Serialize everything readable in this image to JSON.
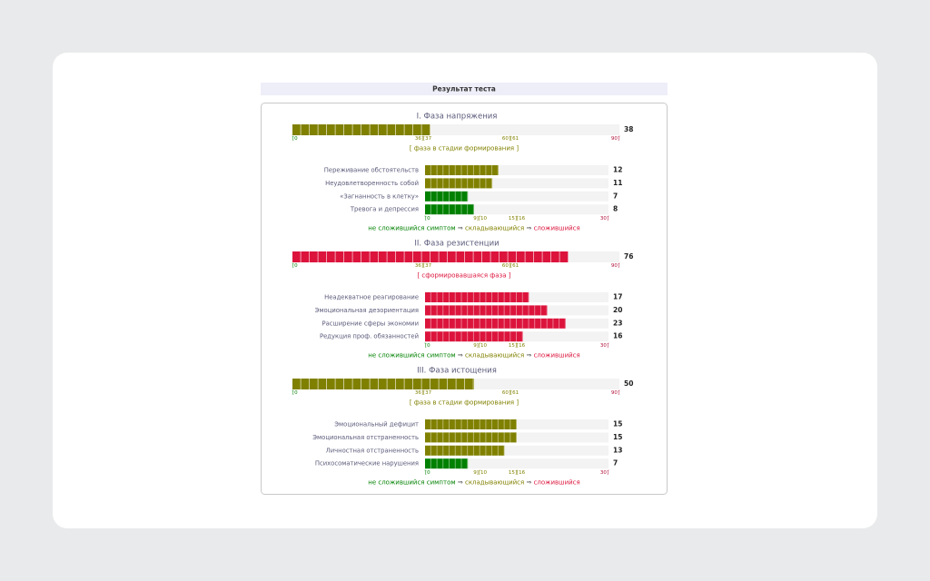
{
  "header": {
    "title": "Результат теста"
  },
  "phase_scale": {
    "ticks": [
      {
        "value": 0,
        "label": "[0",
        "color": "#008000"
      },
      {
        "value": 36,
        "label": "36][37",
        "color": "#808000"
      },
      {
        "value": 60,
        "label": "60][61",
        "color": "#808000"
      },
      {
        "value": 90,
        "label": "90]",
        "color": "#b0103a"
      }
    ]
  },
  "symptom_scale": {
    "ticks": [
      {
        "value": 0,
        "label": "[0",
        "color": "#008000"
      },
      {
        "value": 9,
        "label": "9][10",
        "color": "#808000"
      },
      {
        "value": 15,
        "label": "15][16",
        "color": "#808000"
      },
      {
        "value": 30,
        "label": "30]",
        "color": "#b0103a"
      }
    ]
  },
  "legend": {
    "separator": "⇒",
    "items": [
      {
        "text": "не сложившийся симптом",
        "color": "#008000"
      },
      {
        "text": "складывающийся",
        "color": "#808000"
      },
      {
        "text": "сложившийся",
        "color": "#dc143c"
      }
    ]
  },
  "phases": [
    {
      "title": "I. Фаза напряжения",
      "score": 38,
      "color": "#808000",
      "status": "[ фаза в стадии формирования ]",
      "status_color": "#808000",
      "symptoms": [
        {
          "name": "Переживание обстоятельств",
          "score": 12,
          "color": "#808000"
        },
        {
          "name": "Неудовлетворенность собой",
          "score": 11,
          "color": "#808000"
        },
        {
          "name": "«Загнанность в клетку»",
          "score": 7,
          "color": "#008000"
        },
        {
          "name": "Тревога и депрессия",
          "score": 8,
          "color": "#008000"
        }
      ]
    },
    {
      "title": "II. Фаза резистенции",
      "score": 76,
      "color": "#dc143c",
      "status": "[ сформировавшаяся фаза ]",
      "status_color": "#dc143c",
      "symptoms": [
        {
          "name": "Неадекватное реагирование",
          "score": 17,
          "color": "#dc143c"
        },
        {
          "name": "Эмоциональная дезориентация",
          "score": 20,
          "color": "#dc143c"
        },
        {
          "name": "Расширение сферы экономии",
          "score": 23,
          "color": "#dc143c"
        },
        {
          "name": "Редукция проф. обязанностей",
          "score": 16,
          "color": "#dc143c"
        }
      ]
    },
    {
      "title": "III. Фаза истощения",
      "score": 50,
      "color": "#808000",
      "status": "[ фаза в стадии формирования ]",
      "status_color": "#808000",
      "symptoms": [
        {
          "name": "Эмоциональный дефицит",
          "score": 15,
          "color": "#808000"
        },
        {
          "name": "Эмоциональная отстраненность",
          "score": 15,
          "color": "#808000"
        },
        {
          "name": "Личностная отстраненность",
          "score": 13,
          "color": "#808000"
        },
        {
          "name": "Психосоматические нарушения",
          "score": 7,
          "color": "#008000"
        }
      ]
    }
  ]
}
